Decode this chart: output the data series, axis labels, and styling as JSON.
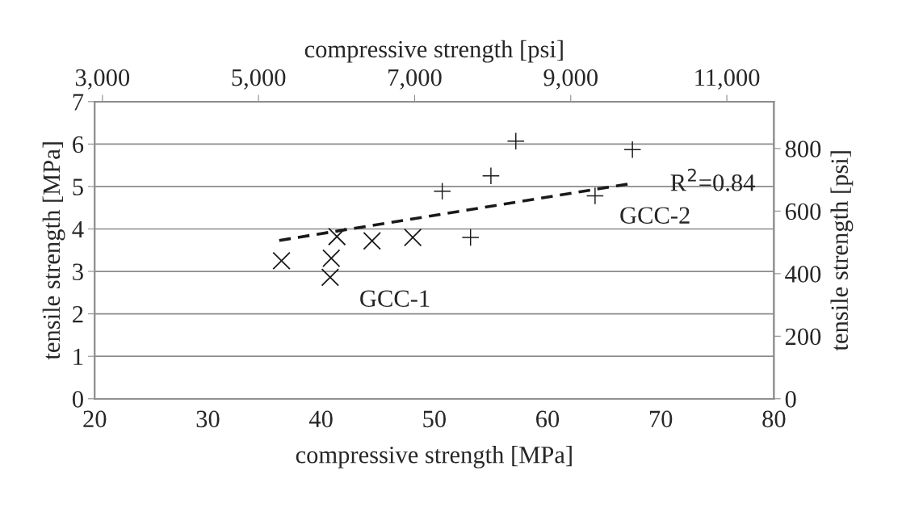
{
  "chart_data": {
    "type": "scatter",
    "xlabel": "compressive strength [MPa]",
    "ylabel": "tensile strength [MPa]",
    "x2label": "compressive strength [psi]",
    "y2label": "tensile strength [psi]",
    "xlim": [
      20,
      80
    ],
    "xticks": [
      20,
      30,
      40,
      50,
      60,
      70,
      80
    ],
    "ylim": [
      0,
      7
    ],
    "yticks": [
      0,
      1,
      2,
      3,
      4,
      5,
      6,
      7
    ],
    "x2lim": [
      2901,
      11603
    ],
    "x2ticks": [
      {
        "value": 3000,
        "label": "3,000"
      },
      {
        "value": 5000,
        "label": "5,000"
      },
      {
        "value": 7000,
        "label": "7,000"
      },
      {
        "value": 9000,
        "label": "9,000"
      },
      {
        "value": 11000,
        "label": "11,000"
      }
    ],
    "y2lim": [
      0,
      950
    ],
    "y2ticks": [
      0,
      200,
      400,
      600,
      800
    ],
    "grid": "y",
    "legend": false,
    "series": [
      {
        "marker": "cross",
        "color": "#1a1a1a",
        "x": [
          36.5,
          40.9,
          40.8,
          41.4,
          44.5,
          48.1
        ],
        "values": [
          3.25,
          3.31,
          2.86,
          3.82,
          3.72,
          3.8
        ]
      },
      {
        "marker": "cross",
        "color": "#1a1a1a",
        "x": [
          50.7,
          53.2,
          55.0,
          57.2,
          64.2,
          67.5
        ],
        "values": [
          4.89,
          3.8,
          5.25,
          6.07,
          4.78,
          5.87
        ]
      },
      {
        "type": "line",
        "line_style": "dashed",
        "marker": "none",
        "color": "#1a1a1a",
        "x": [
          36.3,
          67.4
        ],
        "values": [
          3.73,
          5.07
        ]
      }
    ],
    "annotations": [
      "GCC-1",
      "GCC-2",
      "R$^{2}$=0.84"
    ]
  }
}
